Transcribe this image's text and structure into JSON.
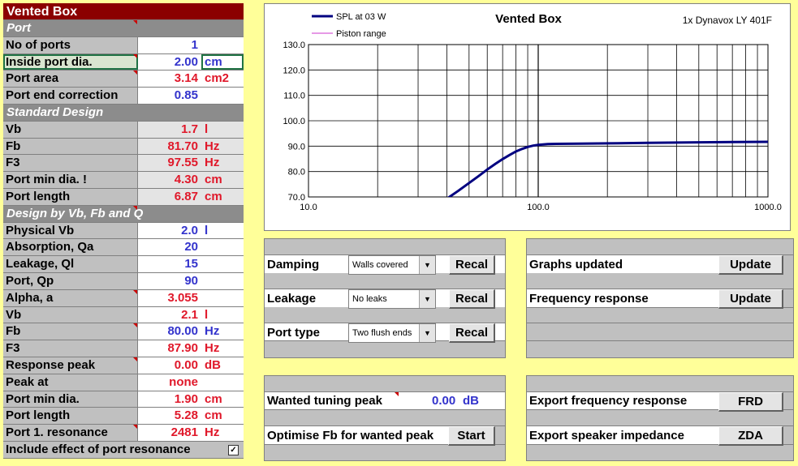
{
  "sheet_title": "Vented Box",
  "sections": {
    "port": "Port",
    "standard": "Standard Design",
    "design": "Design by Vb, Fb and Q"
  },
  "port_rows": [
    {
      "label": "No of ports",
      "value": "1",
      "unit": ""
    },
    {
      "label": "Inside port dia.",
      "value": "2.00",
      "unit": "cm"
    },
    {
      "label": "Port area",
      "value": "3.14",
      "unit": "cm2"
    },
    {
      "label": "Port end correction",
      "value": "0.85",
      "unit": ""
    }
  ],
  "standard_rows": [
    {
      "label": "Vb",
      "value": "1.7",
      "unit": "l"
    },
    {
      "label": "Fb",
      "value": "81.70",
      "unit": "Hz"
    },
    {
      "label": "F3",
      "value": "97.55",
      "unit": "Hz"
    },
    {
      "label": "Port min dia. !",
      "value": "4.30",
      "unit": "cm"
    },
    {
      "label": "Port length",
      "value": "6.87",
      "unit": "cm"
    }
  ],
  "design_rows": [
    {
      "label": "Physical Vb",
      "value": "2.0",
      "unit": "l"
    },
    {
      "label": "Absorption, Qa",
      "value": "20",
      "unit": ""
    },
    {
      "label": "Leakage, Ql",
      "value": "15",
      "unit": ""
    },
    {
      "label": "Port, Qp",
      "value": "90",
      "unit": ""
    },
    {
      "label": "Alpha, a",
      "value": "3.055",
      "unit": ""
    },
    {
      "label": "Vb",
      "value": "2.1",
      "unit": "l"
    },
    {
      "label": "Fb",
      "value": "80.00",
      "unit": "Hz"
    },
    {
      "label": "F3",
      "value": "87.90",
      "unit": "Hz"
    },
    {
      "label": "Response peak",
      "value": "0.00",
      "unit": "dB"
    },
    {
      "label": "Peak at",
      "value": "none",
      "unit": ""
    },
    {
      "label": "Port min dia.",
      "value": "1.90",
      "unit": "cm"
    },
    {
      "label": "Port length",
      "value": "5.28",
      "unit": "cm"
    },
    {
      "label": "Port 1. resonance",
      "value": "2481",
      "unit": "Hz"
    }
  ],
  "include_port_resonance": {
    "label": "Include effect of port resonance",
    "checked": true,
    "mark": "✓"
  },
  "colors": {
    "title_bg": "#8b0000",
    "blue_value": "#3333cc",
    "red_value": "#e0182a",
    "sheet_bg": "#ffff99",
    "curve": "#000080",
    "piston": "#cc33cc"
  },
  "settings": {
    "damping": {
      "label": "Damping",
      "value": "Walls covered",
      "button": "Recal"
    },
    "leakage": {
      "label": "Leakage",
      "value": "No leaks",
      "button": "Recal"
    },
    "port_type": {
      "label": "Port type",
      "value": "Two flush ends",
      "button": "Recal"
    }
  },
  "updates": {
    "graphs": {
      "label": "Graphs updated",
      "button": "Update"
    },
    "frequency": {
      "label": "Frequency response",
      "button": "Update"
    }
  },
  "optimise": {
    "wanted_label": "Wanted tuning peak",
    "wanted_value": "0.00",
    "wanted_unit": "dB",
    "optimise_label": "Optimise Fb for wanted peak",
    "start_button": "Start"
  },
  "export": {
    "freq": {
      "label": "Export frequency response",
      "button": "FRD"
    },
    "zda": {
      "label": "Export speaker impedance",
      "button": "ZDA"
    }
  },
  "chart_data": {
    "type": "line",
    "title": "Vented Box",
    "subtitle": "1x Dynavox LY 401F",
    "x_scale": "log",
    "xlim": [
      10,
      1000
    ],
    "ylim": [
      70,
      130
    ],
    "x_ticks": [
      "10.0",
      "100.0",
      "1000.0"
    ],
    "y_ticks": [
      "130.0",
      "120.0",
      "110.0",
      "100.0",
      "90.0",
      "80.0",
      "70.0"
    ],
    "grid": true,
    "legend_position": "top-left",
    "series": [
      {
        "name": "SPL at 03 W",
        "x": [
          40,
          45,
          50,
          55,
          60,
          65,
          70,
          75,
          80,
          85,
          90,
          95,
          100,
          110,
          120,
          150,
          200,
          300,
          500,
          700,
          1000
        ],
        "y": [
          69.3,
          72.5,
          75.5,
          78.2,
          80.8,
          83.0,
          84.9,
          86.5,
          87.9,
          88.9,
          89.7,
          90.2,
          90.5,
          90.8,
          90.9,
          91.0,
          91.1,
          91.3,
          91.5,
          91.6,
          91.7
        ]
      },
      {
        "name": "Piston range",
        "x": [],
        "y": []
      }
    ]
  }
}
